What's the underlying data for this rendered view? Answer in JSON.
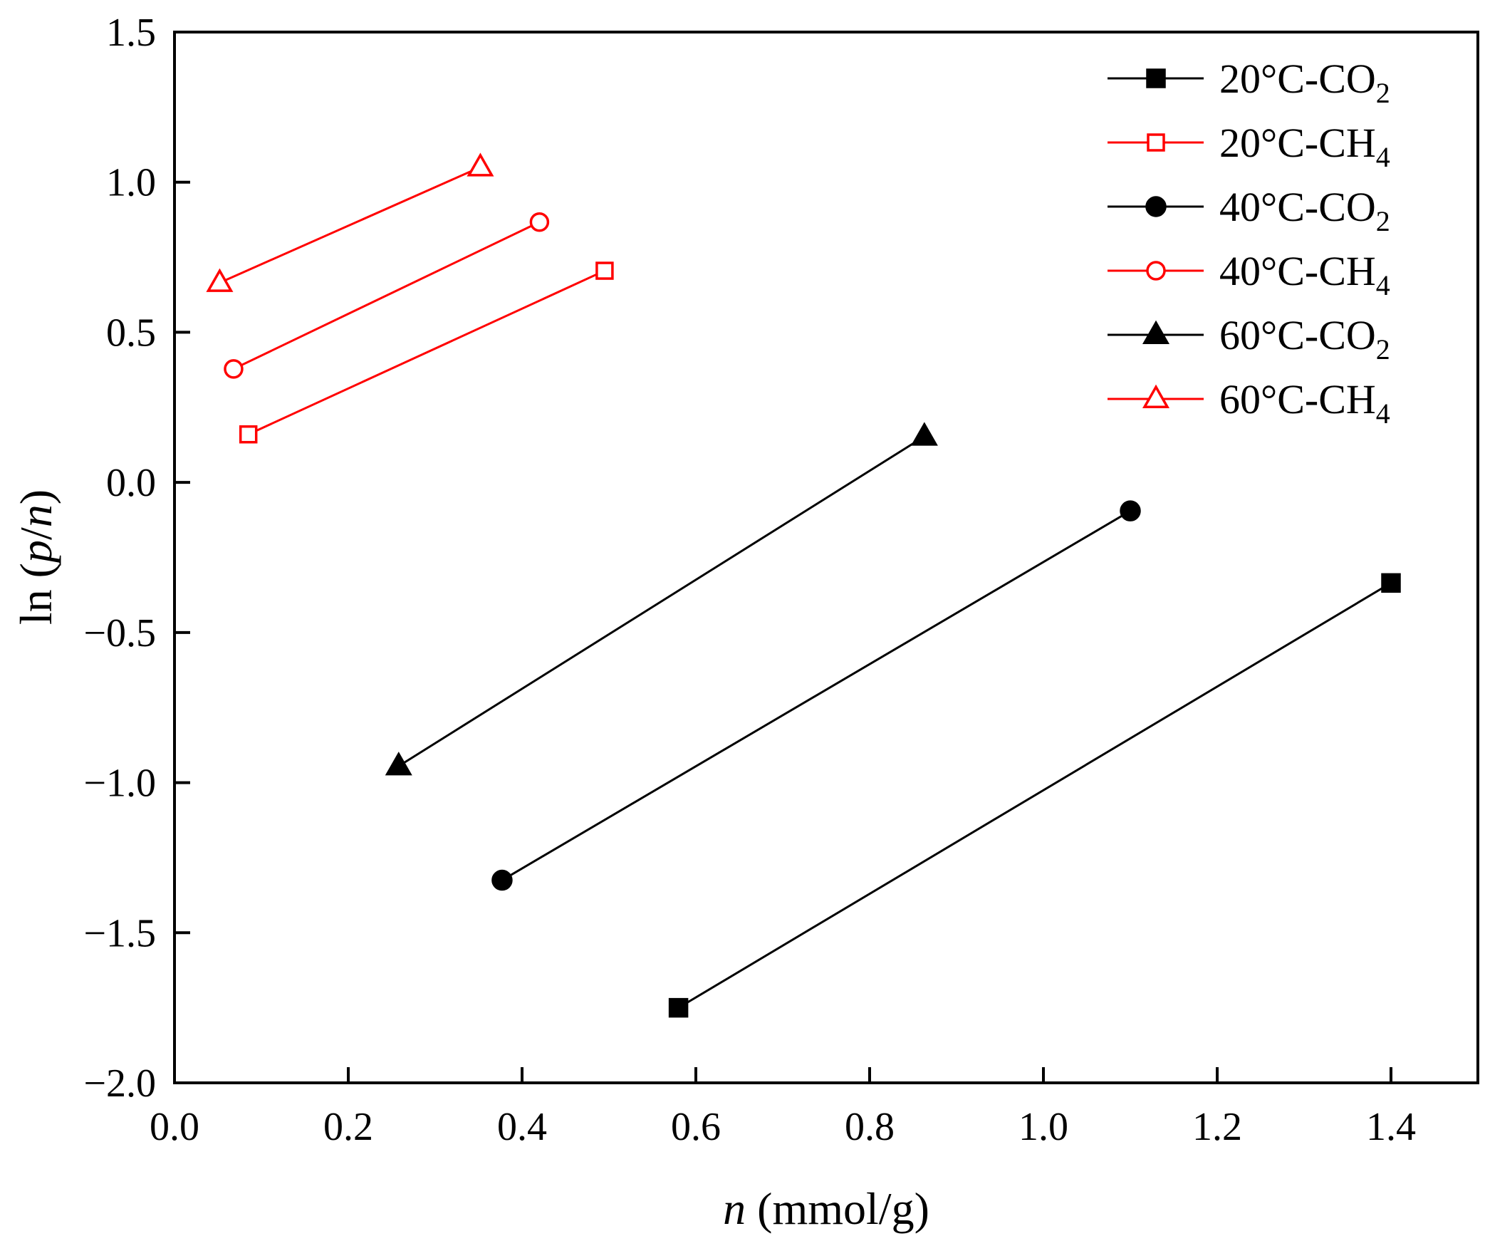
{
  "chart_data": {
    "type": "scatter",
    "title": "",
    "xlabel": {
      "italic": "n",
      "rest": " (mmol/g)"
    },
    "ylabel": {
      "pre": "ln (",
      "italic1": "p",
      "mid": "/",
      "italic2": "n",
      "post": ")"
    },
    "xlim": [
      0.0,
      1.5
    ],
    "ylim": [
      -2.0,
      1.5
    ],
    "xticks": [
      "0.0",
      "0.2",
      "0.4",
      "0.6",
      "0.8",
      "1.0",
      "1.2",
      "1.4"
    ],
    "yticks": [
      "−2.0",
      "−1.5",
      "−1.0",
      "−0.5",
      "0.0",
      "0.5",
      "1.0",
      "1.5"
    ],
    "legend_position": "top-right",
    "series": [
      {
        "name": "20°C-CO",
        "sub": "2",
        "color": "#000000",
        "marker": "square-filled",
        "x": [
          0.58,
          1.4
        ],
        "y": [
          -1.75,
          -0.335
        ]
      },
      {
        "name": "20°C-CH",
        "sub": "4",
        "color": "#ff0000",
        "marker": "square-open",
        "x": [
          0.085,
          0.495
        ],
        "y": [
          0.16,
          0.705
        ]
      },
      {
        "name": "40°C-CO",
        "sub": "2",
        "color": "#000000",
        "marker": "circle-filled",
        "x": [
          0.377,
          1.1
        ],
        "y": [
          -1.325,
          -0.095
        ]
      },
      {
        "name": "40°C-CH",
        "sub": "4",
        "color": "#ff0000",
        "marker": "circle-open",
        "x": [
          0.068,
          0.42
        ],
        "y": [
          0.378,
          0.867
        ]
      },
      {
        "name": "60°C-CO",
        "sub": "2",
        "color": "#000000",
        "marker": "triangle-filled",
        "x": [
          0.258,
          0.863
        ],
        "y": [
          -0.945,
          0.153
        ]
      },
      {
        "name": "60°C-CH",
        "sub": "4",
        "color": "#ff0000",
        "marker": "triangle-open",
        "x": [
          0.052,
          0.352
        ],
        "y": [
          0.665,
          1.05
        ]
      }
    ]
  }
}
